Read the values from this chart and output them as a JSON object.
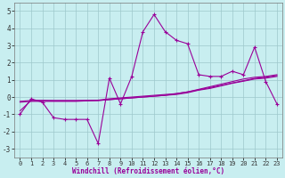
{
  "xlabel": "Windchill (Refroidissement éolien,°C)",
  "background_color": "#c8eef0",
  "grid_color": "#9ec8cc",
  "line_color": "#990099",
  "x_hours": [
    0,
    1,
    2,
    3,
    4,
    5,
    6,
    7,
    8,
    9,
    10,
    11,
    12,
    13,
    14,
    15,
    16,
    17,
    18,
    19,
    20,
    21,
    22,
    23
  ],
  "y_temp": [
    -1.0,
    -0.1,
    -0.3,
    -1.2,
    -1.3,
    -1.3,
    -1.3,
    -2.7,
    1.1,
    -0.4,
    1.2,
    3.8,
    4.8,
    3.8,
    3.3,
    3.1,
    1.3,
    1.2,
    1.2,
    1.5,
    1.3,
    2.9,
    0.9,
    -0.4
  ],
  "y_smooth1": [
    -0.25,
    -0.2,
    -0.2,
    -0.2,
    -0.2,
    -0.2,
    -0.2,
    -0.2,
    -0.15,
    -0.1,
    -0.05,
    0.0,
    0.05,
    0.1,
    0.2,
    0.3,
    0.45,
    0.6,
    0.75,
    0.9,
    1.05,
    1.15,
    1.2,
    1.3
  ],
  "y_smooth2": [
    -0.3,
    -0.25,
    -0.25,
    -0.25,
    -0.25,
    -0.25,
    -0.22,
    -0.2,
    -0.15,
    -0.1,
    -0.05,
    0.0,
    0.05,
    0.1,
    0.15,
    0.25,
    0.4,
    0.5,
    0.65,
    0.8,
    0.92,
    1.05,
    1.1,
    1.2
  ],
  "y_smooth3": [
    -0.8,
    -0.2,
    -0.2,
    -0.22,
    -0.22,
    -0.22,
    -0.2,
    -0.18,
    -0.1,
    -0.05,
    0.0,
    0.05,
    0.1,
    0.15,
    0.2,
    0.3,
    0.42,
    0.55,
    0.68,
    0.82,
    0.95,
    1.08,
    1.15,
    1.25
  ],
  "ylim": [
    -3.5,
    5.5
  ],
  "yticks": [
    -3,
    -2,
    -1,
    0,
    1,
    2,
    3,
    4,
    5
  ],
  "xlim": [
    -0.5,
    23.5
  ],
  "xtick_labels": [
    "0",
    "1",
    "2",
    "3",
    "4",
    "5",
    "6",
    "7",
    "8",
    "9",
    "10",
    "11",
    "12",
    "13",
    "14",
    "15",
    "16",
    "17",
    "18",
    "19",
    "20",
    "21",
    "22",
    "23"
  ]
}
